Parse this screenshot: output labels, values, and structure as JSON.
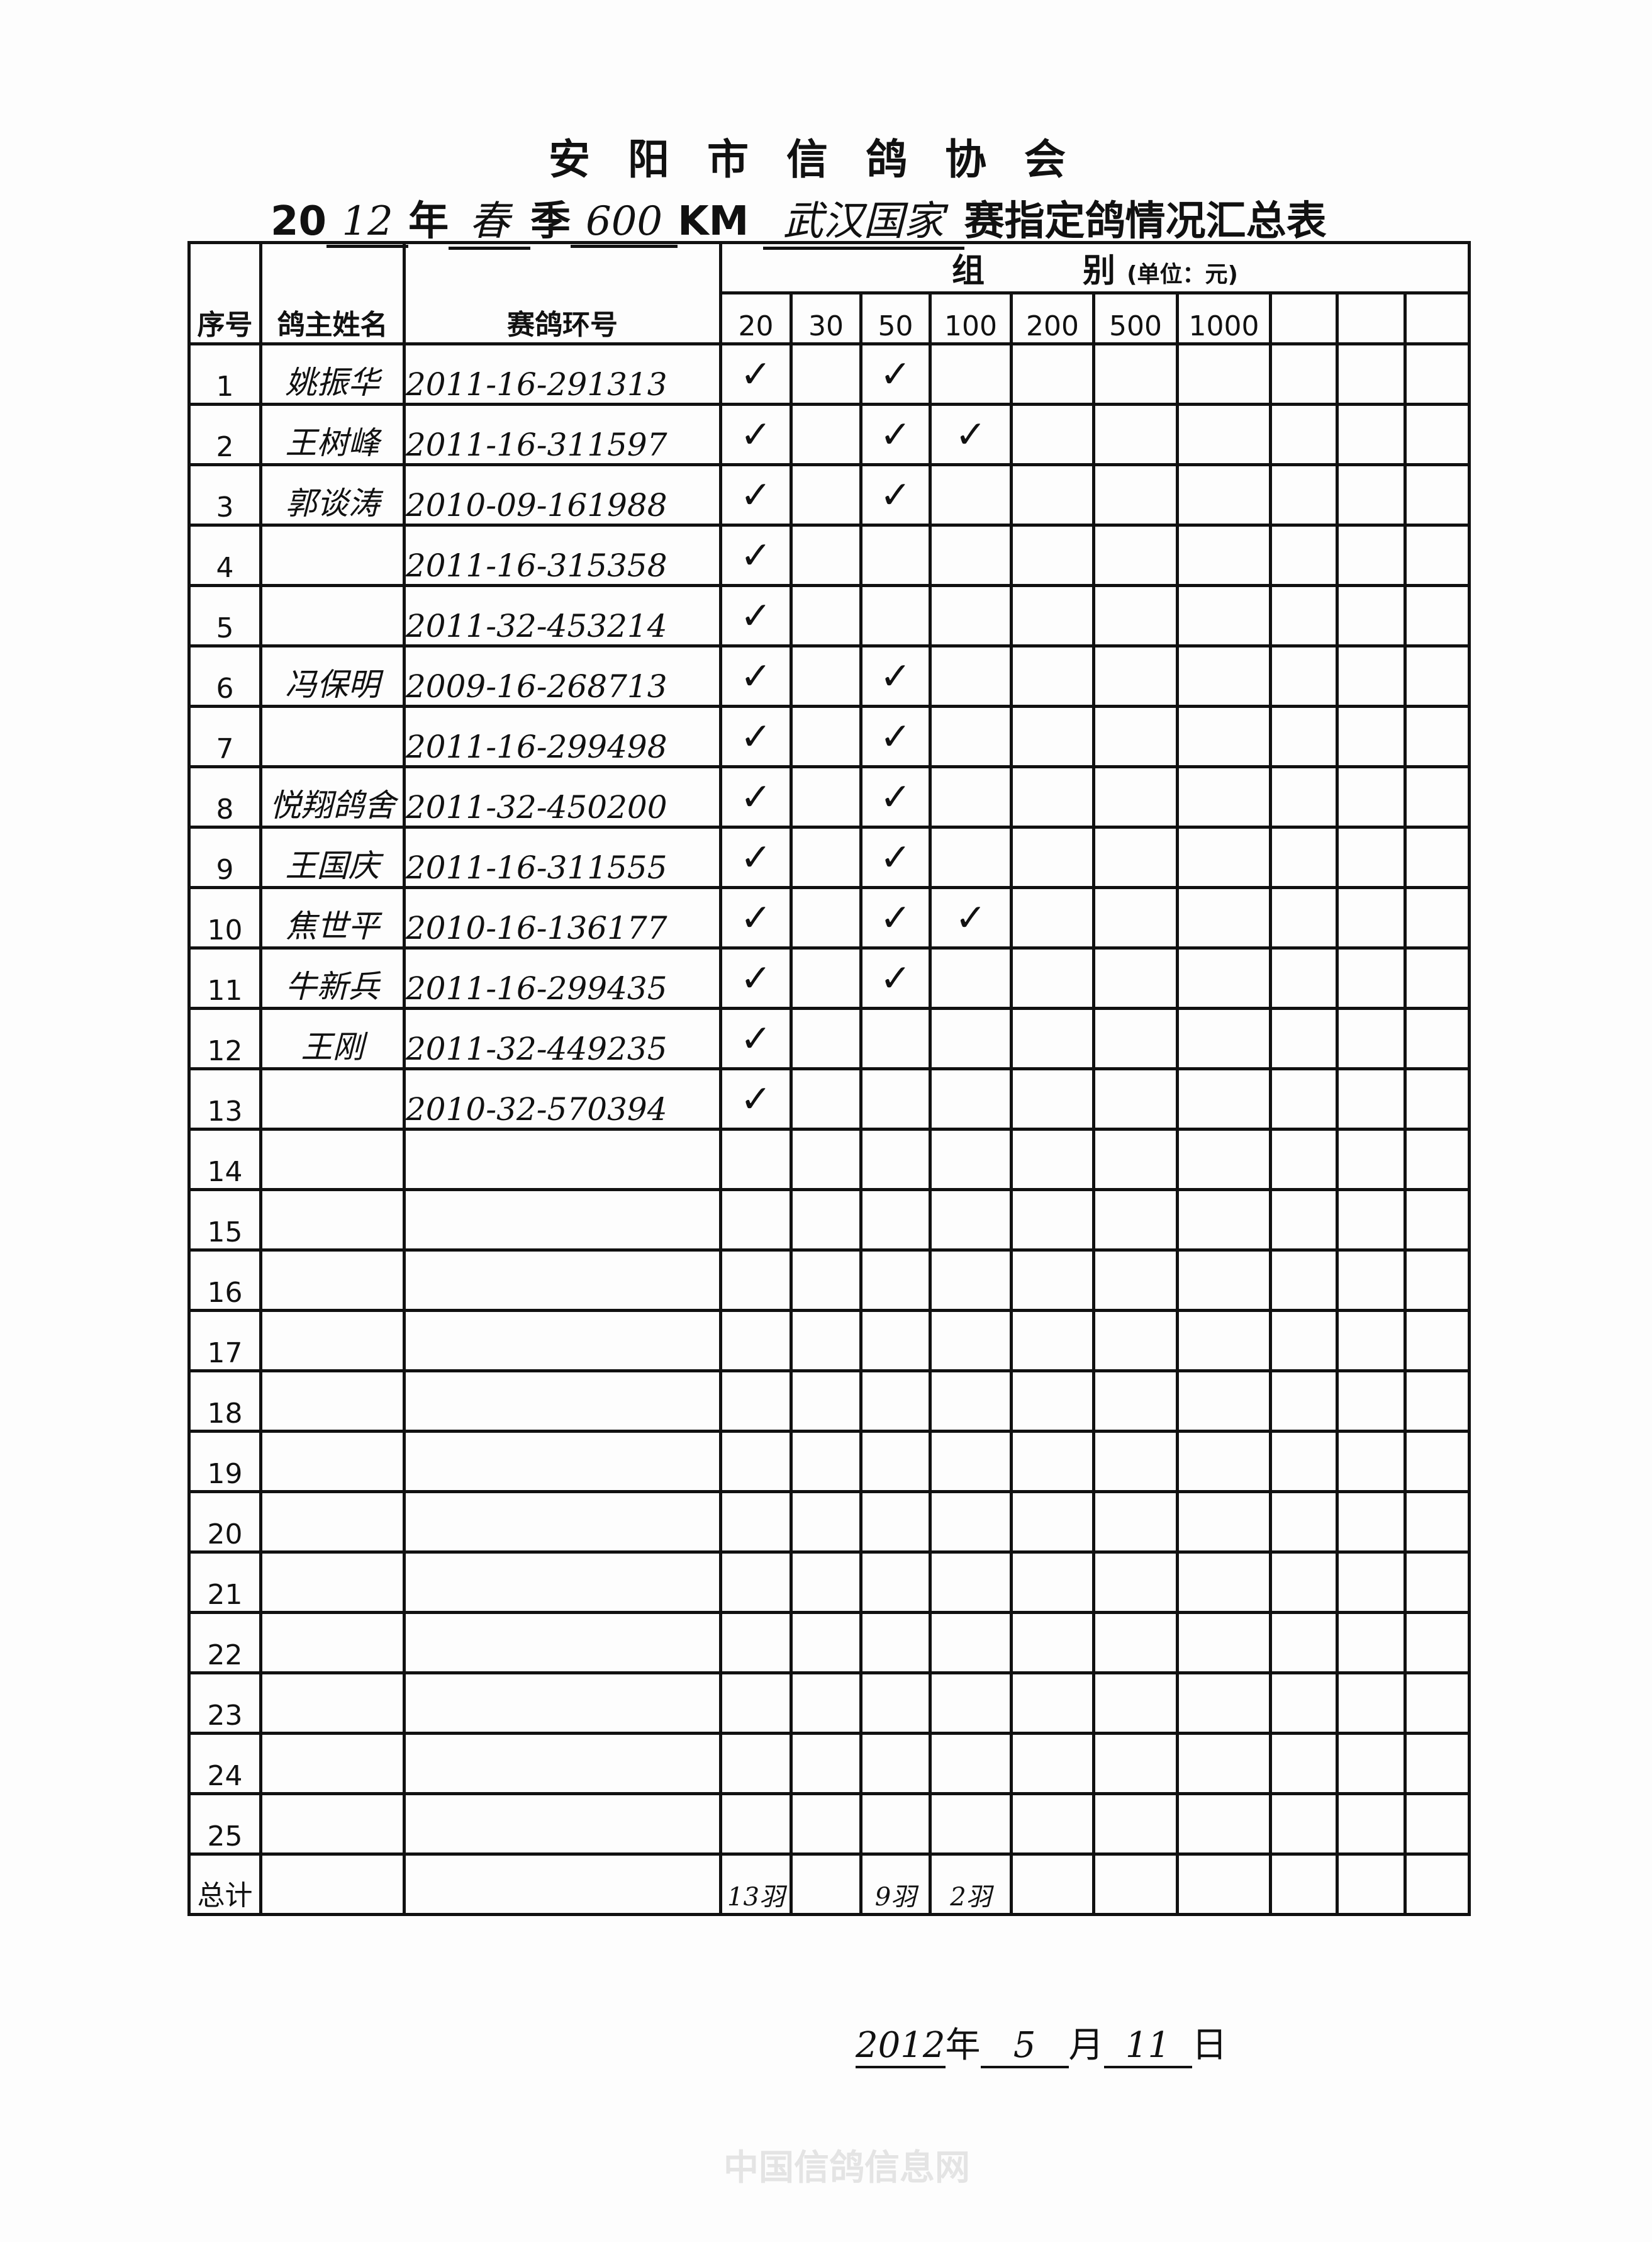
{
  "title": "安阳市信鸽协会",
  "subtitle": {
    "prefix": "20",
    "year": "12",
    "year_label": "年",
    "season": "春",
    "season_label": "季",
    "distance": "600",
    "unit": "KM",
    "race": "武汉国家",
    "suffix": "赛指定鸽情况汇总表"
  },
  "headers": {
    "seq": "序号",
    "owner": "鸽主姓名",
    "ring": "赛鸽环号",
    "group": "组　　　别",
    "unit": "(单位：元)",
    "groups": [
      "20",
      "30",
      "50",
      "100",
      "200",
      "500",
      "1000",
      "",
      "",
      ""
    ]
  },
  "check_mark": "✓",
  "rows": [
    {
      "seq": "1",
      "owner": "姚振华",
      "ring": "2011-16-291313",
      "checks": [
        "20",
        "50"
      ]
    },
    {
      "seq": "2",
      "owner": "王树峰",
      "ring": "2011-16-311597",
      "checks": [
        "20",
        "50",
        "100"
      ]
    },
    {
      "seq": "3",
      "owner": "郭谈涛",
      "ring": "2010-09-161988",
      "checks": [
        "20",
        "50"
      ]
    },
    {
      "seq": "4",
      "owner": "",
      "ring": "2011-16-315358",
      "checks": [
        "20"
      ]
    },
    {
      "seq": "5",
      "owner": "",
      "ring": "2011-32-453214",
      "checks": [
        "20"
      ]
    },
    {
      "seq": "6",
      "owner": "冯保明",
      "ring": "2009-16-268713",
      "checks": [
        "20",
        "50"
      ]
    },
    {
      "seq": "7",
      "owner": "",
      "ring": "2011-16-299498",
      "checks": [
        "20",
        "50"
      ]
    },
    {
      "seq": "8",
      "owner": "悦翔鸽舍",
      "ring": "2011-32-450200",
      "checks": [
        "20",
        "50"
      ]
    },
    {
      "seq": "9",
      "owner": "王国庆",
      "ring": "2011-16-311555",
      "checks": [
        "20",
        "50"
      ]
    },
    {
      "seq": "10",
      "owner": "焦世平",
      "ring": "2010-16-136177",
      "checks": [
        "20",
        "50",
        "100"
      ]
    },
    {
      "seq": "11",
      "owner": "牛新兵",
      "ring": "2011-16-299435",
      "checks": [
        "20",
        "50"
      ]
    },
    {
      "seq": "12",
      "owner": "王刚",
      "ring": "2011-32-449235",
      "checks": [
        "20"
      ]
    },
    {
      "seq": "13",
      "owner": "",
      "ring": "2010-32-570394",
      "checks": [
        "20"
      ]
    },
    {
      "seq": "14",
      "owner": "",
      "ring": "",
      "checks": []
    },
    {
      "seq": "15",
      "owner": "",
      "ring": "",
      "checks": []
    },
    {
      "seq": "16",
      "owner": "",
      "ring": "",
      "checks": []
    },
    {
      "seq": "17",
      "owner": "",
      "ring": "",
      "checks": []
    },
    {
      "seq": "18",
      "owner": "",
      "ring": "",
      "checks": []
    },
    {
      "seq": "19",
      "owner": "",
      "ring": "",
      "checks": []
    },
    {
      "seq": "20",
      "owner": "",
      "ring": "",
      "checks": []
    },
    {
      "seq": "21",
      "owner": "",
      "ring": "",
      "checks": []
    },
    {
      "seq": "22",
      "owner": "",
      "ring": "",
      "checks": []
    },
    {
      "seq": "23",
      "owner": "",
      "ring": "",
      "checks": []
    },
    {
      "seq": "24",
      "owner": "",
      "ring": "",
      "checks": []
    },
    {
      "seq": "25",
      "owner": "",
      "ring": "",
      "checks": []
    }
  ],
  "total": {
    "label": "总计",
    "values": {
      "20": "13羽",
      "50": "9羽",
      "100": "2羽"
    }
  },
  "date": {
    "year": "2012",
    "year_label": "年",
    "month": "5",
    "month_label": "月",
    "day": "11",
    "day_label": "日"
  },
  "watermark": "中国信鸽信息网"
}
